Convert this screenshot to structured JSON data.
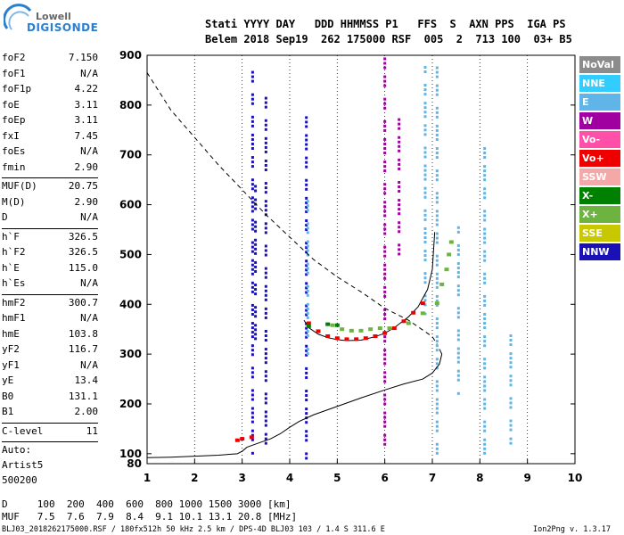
{
  "logo": {
    "line1": "Lowell",
    "line2": "DIGISONDE"
  },
  "header": {
    "line1": "Stati YYYY DAY   DDD HHMMSS P1   FFS  S  AXN PPS  IGA PS",
    "line2": "Belem 2018 Sep19  262 175000 RSF  005  2  713 100  03+ B5"
  },
  "params": {
    "g1": [
      [
        "foF2",
        "7.150"
      ],
      [
        "foF1",
        "N/A"
      ],
      [
        "foF1p",
        "4.22"
      ],
      [
        "foE",
        "3.11"
      ],
      [
        "foEp",
        "3.11"
      ],
      [
        "fxI",
        "7.45"
      ],
      [
        "foEs",
        "N/A"
      ],
      [
        "fmin",
        "2.90"
      ]
    ],
    "g2": [
      [
        "MUF(D)",
        "20.75"
      ],
      [
        "M(D)",
        "2.90"
      ],
      [
        "D",
        "N/A"
      ]
    ],
    "g3": [
      [
        "h`F",
        "326.5"
      ],
      [
        "h`F2",
        "326.5"
      ],
      [
        "h`E",
        "115.0"
      ],
      [
        "h`Es",
        "N/A"
      ]
    ],
    "g4": [
      [
        "hmF2",
        "300.7"
      ],
      [
        "hmF1",
        "N/A"
      ],
      [
        "hmE",
        "103.8"
      ],
      [
        "yF2",
        "116.7"
      ],
      [
        "yF1",
        "N/A"
      ],
      [
        "yE",
        "13.4"
      ],
      [
        "B0",
        "131.1"
      ],
      [
        "B1",
        "2.00"
      ]
    ],
    "g5": [
      [
        "C-level",
        "11"
      ]
    ],
    "auto": [
      "Auto:",
      "Artist5",
      "500200"
    ]
  },
  "legend": [
    {
      "label": "NoVal",
      "color": "#8c8c8c"
    },
    {
      "label": "NNE",
      "color": "#33ccff"
    },
    {
      "label": "E",
      "color": "#5fb4e8"
    },
    {
      "label": "W",
      "color": "#a000a0"
    },
    {
      "label": "Vo-",
      "color": "#ff4fa8"
    },
    {
      "label": "Vo+",
      "color": "#ee0000"
    },
    {
      "label": "SSW",
      "color": "#f4a8a8"
    },
    {
      "label": "X-",
      "color": "#008000"
    },
    {
      "label": "X+",
      "color": "#6db33f"
    },
    {
      "label": "SSE",
      "color": "#c8c800"
    },
    {
      "label": "NNW",
      "color": "#1a10b8"
    }
  ],
  "footer": {
    "d_row": "D     100  200  400  600  800 1000 1500 3000 [km]",
    "muf_row": "MUF   7.5  7.6  7.9  8.4  9.1 10.1 13.1 20.8 [MHz]",
    "source": "BLJ03_2018262175000.RSF / 180fx512h 50 kHz 2.5 km / DPS-4D BLJ03 103 / 1.4 S 311.6 E",
    "version": "Ion2Png v. 1.3.17"
  },
  "chart_data": {
    "type": "scatter",
    "title": "",
    "xlabel": "",
    "ylabel": "",
    "xlim": [
      1,
      10
    ],
    "ylim": [
      80,
      900
    ],
    "xticks": [
      1,
      2,
      3,
      4,
      5,
      6,
      7,
      8,
      9,
      10
    ],
    "yticks": [
      100,
      200,
      300,
      400,
      500,
      600,
      700,
      800,
      900
    ],
    "ytick_labels": [
      "100",
      "200",
      "300",
      "400",
      "500",
      "600",
      "700",
      "800",
      "900"
    ],
    "grid": "vertical dotted at integer frequencies",
    "series": [
      {
        "name": "Vo+",
        "values": [
          [
            4.4,
            362
          ],
          [
            4.6,
            346
          ],
          [
            4.8,
            336
          ],
          [
            5.0,
            332
          ],
          [
            5.2,
            330
          ],
          [
            5.4,
            330
          ],
          [
            5.6,
            332
          ],
          [
            5.8,
            336
          ],
          [
            6.0,
            342
          ],
          [
            6.2,
            352
          ],
          [
            6.4,
            366
          ],
          [
            6.6,
            383
          ],
          [
            6.8,
            402
          ],
          [
            2.9,
            127
          ],
          [
            3.0,
            130
          ],
          [
            3.2,
            133
          ]
        ]
      },
      {
        "name": "X+",
        "values": [
          [
            4.9,
            358
          ],
          [
            5.1,
            350
          ],
          [
            5.3,
            347
          ],
          [
            5.5,
            347
          ],
          [
            5.7,
            350
          ],
          [
            5.9,
            352
          ],
          [
            6.1,
            352
          ],
          [
            6.5,
            362
          ],
          [
            6.8,
            382
          ],
          [
            7.1,
            402
          ],
          [
            7.2,
            440
          ],
          [
            7.3,
            470
          ],
          [
            7.35,
            500
          ],
          [
            7.4,
            525
          ]
        ]
      },
      {
        "name": "X-",
        "values": [
          [
            4.4,
            356
          ],
          [
            4.8,
            360
          ],
          [
            5.0,
            358
          ]
        ]
      }
    ],
    "curves": [
      {
        "name": "ordinary trace",
        "x": [
          7.05,
          7.0,
          6.9,
          6.7,
          6.5,
          6.2,
          6.0,
          5.8,
          5.5,
          5.2,
          5.0,
          4.8,
          4.6,
          4.4,
          4.3
        ],
        "y": [
          545,
          470,
          430,
          395,
          375,
          353,
          342,
          335,
          328,
          327,
          329,
          333,
          340,
          353,
          368
        ]
      },
      {
        "name": "true height profile",
        "x": [
          1.0,
          1.5,
          2.0,
          2.5,
          2.9,
          3.0,
          3.1,
          3.3,
          3.6,
          3.8,
          4.0,
          4.2,
          4.5,
          5.0,
          5.5,
          6.0,
          6.4,
          6.8,
          7.0,
          7.15,
          7.2,
          7.15
        ],
        "y": [
          92,
          93,
          95,
          97,
          100,
          105,
          113,
          120,
          130,
          140,
          153,
          165,
          178,
          195,
          212,
          228,
          240,
          250,
          262,
          280,
          300,
          310
        ]
      },
      {
        "name": "MUF(D) curve",
        "x": [
          1.0,
          1.5,
          2.0,
          2.5,
          3.0,
          3.5,
          4.0,
          4.5,
          5.0,
          5.5,
          6.0,
          6.5,
          7.0,
          7.1
        ],
        "y": [
          865,
          790,
          735,
          680,
          630,
          580,
          535,
          490,
          455,
          425,
          392,
          368,
          335,
          320
        ]
      }
    ]
  }
}
